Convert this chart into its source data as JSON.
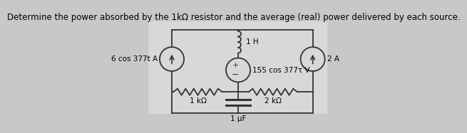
{
  "title": "Determine the power absorbed by the 1kΩ resistor and the average (real) power delivered by each source.",
  "fig_bg": "#c8c8c8",
  "circuit_bg": "#d8d8d8",
  "wire_color": "#333333",
  "title_fontsize": 8.5,
  "label_fontsize": 7.5,
  "left_source_label": "6 cos 377t A",
  "right_source_label": "2 A",
  "voltage_source_label": "155 cos 377τ V",
  "inductor_label": "1 H",
  "r1_label": "1 kΩ",
  "r2_label": "2 kΩ",
  "cap_label": "1 μF"
}
